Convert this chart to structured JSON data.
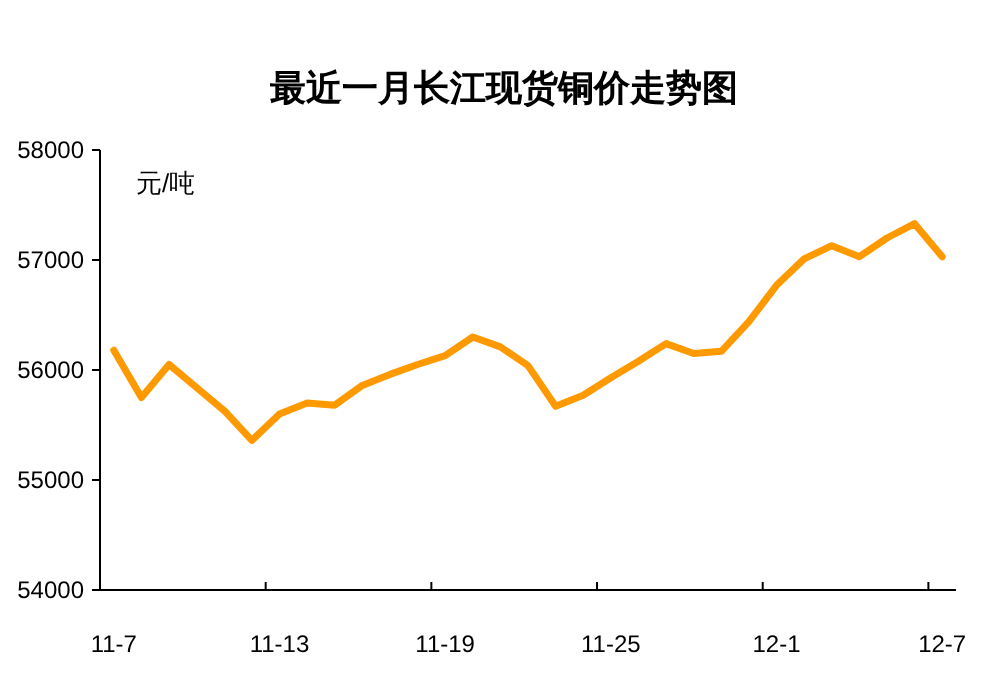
{
  "chart_data": {
    "type": "line",
    "title": "最近一月长江现货铜价走势图",
    "ylabel": "元/吨",
    "categories": [
      "11-7",
      null,
      null,
      null,
      null,
      null,
      "11-13",
      null,
      null,
      null,
      null,
      null,
      "11-19",
      null,
      null,
      null,
      null,
      null,
      "11-25",
      null,
      null,
      null,
      null,
      null,
      "12-1",
      null,
      null,
      null,
      null,
      null,
      "12-7"
    ],
    "values": [
      56180,
      55750,
      56050,
      55840,
      55630,
      55360,
      55600,
      55700,
      55680,
      55860,
      55960,
      56050,
      56130,
      56300,
      56210,
      56040,
      55670,
      55770,
      55930,
      56080,
      56240,
      56150,
      56170,
      56440,
      56770,
      57010,
      57130,
      57030,
      57200,
      57330,
      57030
    ],
    "color": "#ff9900",
    "ylim": [
      54000,
      58000
    ],
    "yticks": [
      54000,
      55000,
      56000,
      57000,
      58000
    ]
  }
}
